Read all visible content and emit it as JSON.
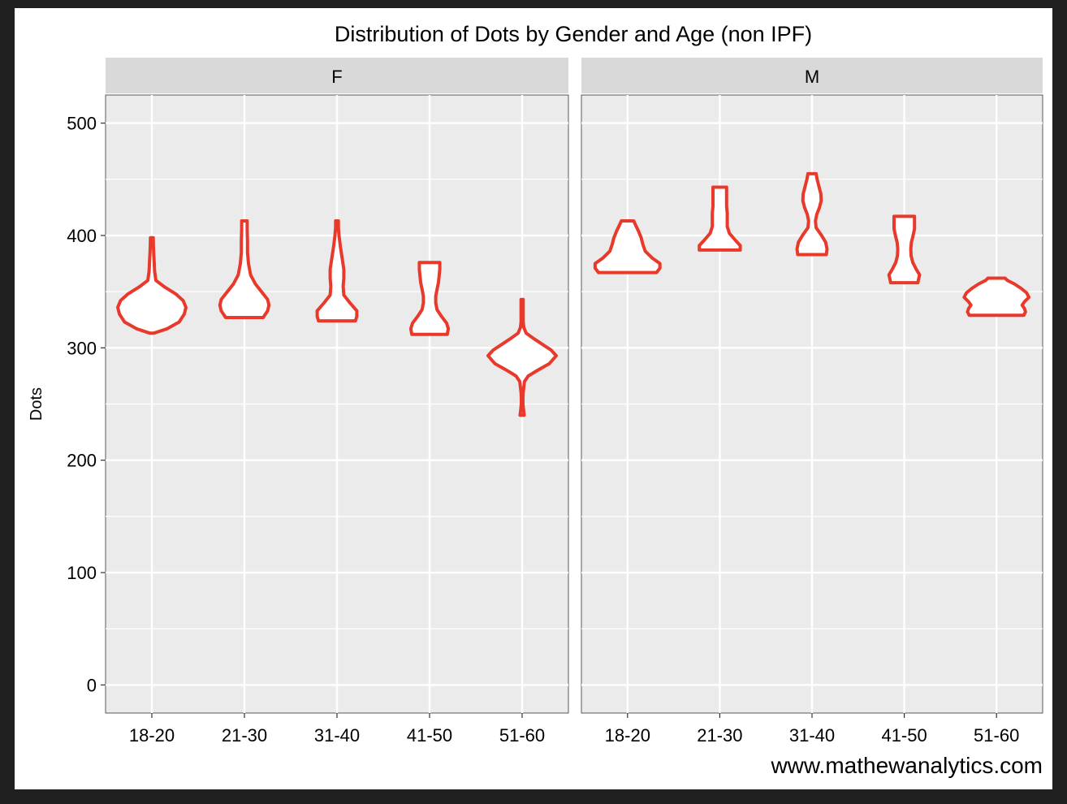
{
  "chart_data": {
    "type": "violin",
    "title": "Distribution of Dots by Gender and Age (non IPF)",
    "ylabel": "Dots",
    "xlabel": "",
    "ylim": [
      -25,
      525
    ],
    "yticks": [
      0,
      100,
      200,
      300,
      400,
      500
    ],
    "grid": true,
    "legend": "none",
    "watermark": "www.mathewanalytics.com",
    "categories": [
      "18-20",
      "21-30",
      "31-40",
      "41-50",
      "51-60"
    ],
    "colors": {
      "outline": "#e8392b",
      "fill": "#ffffff",
      "panel": "#ebebeb",
      "strip": "#d9d9d9",
      "grid": "#ffffff"
    },
    "facets": [
      {
        "name": "F",
        "violins": [
          {
            "category": "18-20",
            "min": 313,
            "max": 398,
            "profile": [
              [
                313,
                0.05
              ],
              [
                317,
                0.45
              ],
              [
                323,
                0.8
              ],
              [
                330,
                0.95
              ],
              [
                336,
                1.0
              ],
              [
                342,
                0.92
              ],
              [
                348,
                0.7
              ],
              [
                354,
                0.38
              ],
              [
                360,
                0.12
              ],
              [
                368,
                0.08
              ],
              [
                376,
                0.07
              ],
              [
                384,
                0.055
              ],
              [
                391,
                0.045
              ],
              [
                398,
                0.04
              ]
            ]
          },
          {
            "category": "21-30",
            "min": 327,
            "max": 413,
            "profile": [
              [
                327,
                0.55
              ],
              [
                333,
                0.68
              ],
              [
                338,
                0.72
              ],
              [
                343,
                0.68
              ],
              [
                350,
                0.5
              ],
              [
                357,
                0.32
              ],
              [
                365,
                0.18
              ],
              [
                375,
                0.12
              ],
              [
                385,
                0.09
              ],
              [
                395,
                0.09
              ],
              [
                405,
                0.08
              ],
              [
                413,
                0.08
              ]
            ]
          },
          {
            "category": "31-40",
            "min": 324,
            "max": 413,
            "profile": [
              [
                324,
                0.54
              ],
              [
                328,
                0.58
              ],
              [
                333,
                0.58
              ],
              [
                340,
                0.38
              ],
              [
                347,
                0.2
              ],
              [
                355,
                0.18
              ],
              [
                362,
                0.2
              ],
              [
                370,
                0.2
              ],
              [
                380,
                0.15
              ],
              [
                390,
                0.1
              ],
              [
                400,
                0.06
              ],
              [
                407,
                0.04
              ],
              [
                413,
                0.04
              ]
            ]
          },
          {
            "category": "41-50",
            "min": 312,
            "max": 376,
            "profile": [
              [
                312,
                0.52
              ],
              [
                317,
                0.55
              ],
              [
                322,
                0.5
              ],
              [
                328,
                0.35
              ],
              [
                334,
                0.22
              ],
              [
                340,
                0.18
              ],
              [
                346,
                0.18
              ],
              [
                352,
                0.22
              ],
              [
                358,
                0.26
              ],
              [
                364,
                0.28
              ],
              [
                370,
                0.3
              ],
              [
                376,
                0.3
              ]
            ]
          },
          {
            "category": "51-60",
            "min": 240,
            "max": 343,
            "profile": [
              [
                240,
                0.06
              ],
              [
                245,
                0.04
              ],
              [
                250,
                0.025
              ],
              [
                255,
                0.025
              ],
              [
                260,
                0.03
              ],
              [
                265,
                0.05
              ],
              [
                270,
                0.07
              ],
              [
                275,
                0.18
              ],
              [
                280,
                0.45
              ],
              [
                286,
                0.8
              ],
              [
                293,
                1.0
              ],
              [
                298,
                0.85
              ],
              [
                303,
                0.6
              ],
              [
                308,
                0.35
              ],
              [
                313,
                0.12
              ],
              [
                318,
                0.05
              ],
              [
                323,
                0.03
              ],
              [
                330,
                0.03
              ],
              [
                336,
                0.03
              ],
              [
                343,
                0.03
              ]
            ]
          }
        ]
      },
      {
        "name": "M",
        "violins": [
          {
            "category": "18-20",
            "min": 367,
            "max": 413,
            "profile": [
              [
                367,
                0.85
              ],
              [
                371,
                0.95
              ],
              [
                375,
                0.95
              ],
              [
                380,
                0.72
              ],
              [
                386,
                0.52
              ],
              [
                392,
                0.45
              ],
              [
                398,
                0.4
              ],
              [
                404,
                0.32
              ],
              [
                409,
                0.24
              ],
              [
                413,
                0.18
              ]
            ]
          },
          {
            "category": "21-30",
            "min": 387,
            "max": 443,
            "profile": [
              [
                387,
                0.6
              ],
              [
                391,
                0.6
              ],
              [
                396,
                0.45
              ],
              [
                402,
                0.28
              ],
              [
                408,
                0.22
              ],
              [
                414,
                0.22
              ],
              [
                420,
                0.22
              ],
              [
                426,
                0.2
              ],
              [
                432,
                0.2
              ],
              [
                438,
                0.2
              ],
              [
                443,
                0.2
              ]
            ]
          },
          {
            "category": "31-40",
            "min": 383,
            "max": 455,
            "profile": [
              [
                383,
                0.42
              ],
              [
                388,
                0.44
              ],
              [
                394,
                0.4
              ],
              [
                400,
                0.28
              ],
              [
                407,
                0.12
              ],
              [
                413,
                0.1
              ],
              [
                419,
                0.14
              ],
              [
                425,
                0.22
              ],
              [
                431,
                0.27
              ],
              [
                437,
                0.26
              ],
              [
                444,
                0.2
              ],
              [
                450,
                0.15
              ],
              [
                455,
                0.12
              ]
            ]
          },
          {
            "category": "41-50",
            "min": 358,
            "max": 417,
            "profile": [
              [
                358,
                0.4
              ],
              [
                361,
                0.42
              ],
              [
                365,
                0.45
              ],
              [
                370,
                0.35
              ],
              [
                376,
                0.25
              ],
              [
                382,
                0.2
              ],
              [
                388,
                0.19
              ],
              [
                394,
                0.21
              ],
              [
                400,
                0.26
              ],
              [
                406,
                0.3
              ],
              [
                412,
                0.3
              ],
              [
                417,
                0.3
              ]
            ]
          },
          {
            "category": "51-60",
            "min": 329,
            "max": 362,
            "profile": [
              [
                329,
                0.8
              ],
              [
                332,
                0.85
              ],
              [
                335,
                0.82
              ],
              [
                338,
                0.75
              ],
              [
                341,
                0.82
              ],
              [
                345,
                0.95
              ],
              [
                349,
                0.88
              ],
              [
                353,
                0.72
              ],
              [
                357,
                0.52
              ],
              [
                360,
                0.32
              ],
              [
                362,
                0.25
              ]
            ]
          }
        ]
      }
    ]
  }
}
